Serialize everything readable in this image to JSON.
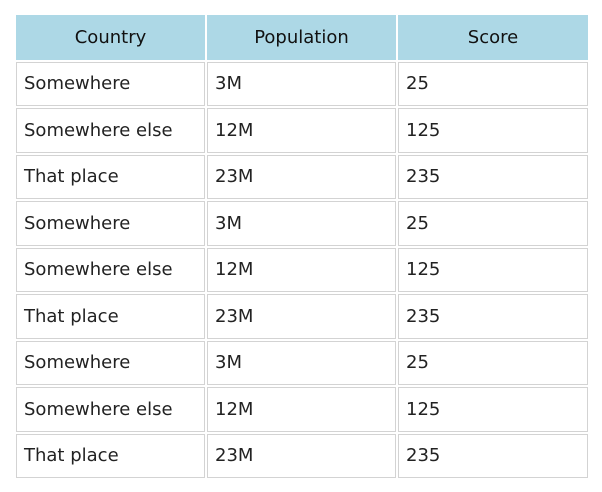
{
  "table": {
    "headers": [
      "Country",
      "Population",
      "Score"
    ],
    "rows": [
      [
        "Somewhere",
        "3M",
        "25"
      ],
      [
        "Somewhere else",
        "12M",
        "125"
      ],
      [
        "That place",
        "23M",
        "235"
      ],
      [
        "Somewhere",
        "3M",
        "25"
      ],
      [
        "Somewhere else",
        "12M",
        "125"
      ],
      [
        "That place",
        "23M",
        "235"
      ],
      [
        "Somewhere",
        "3M",
        "25"
      ],
      [
        "Somewhere else",
        "12M",
        "125"
      ],
      [
        "That place",
        "23M",
        "235"
      ]
    ]
  }
}
